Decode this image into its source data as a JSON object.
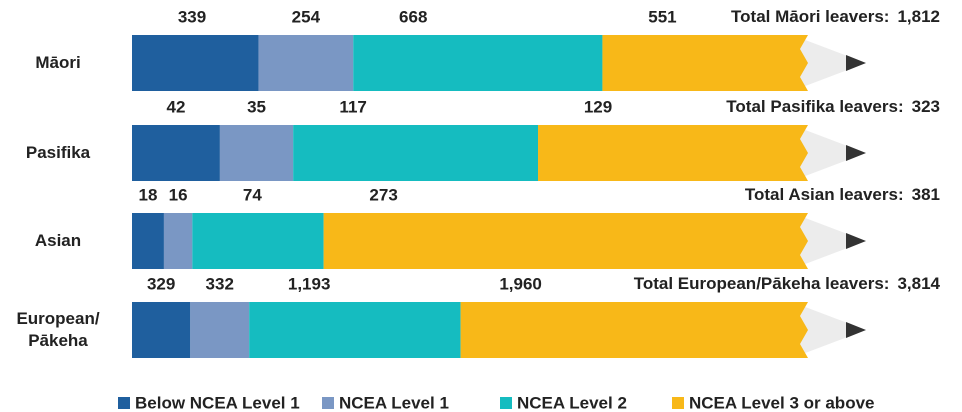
{
  "chart_data": {
    "type": "bar",
    "stacking": "percent",
    "categories": [
      "Māori",
      "Pasifika",
      "Asian",
      "European/ Pākeha"
    ],
    "series": [
      {
        "name": "Below NCEA Level 1",
        "color": "#1f5f9e",
        "values": [
          339,
          42,
          18,
          329
        ]
      },
      {
        "name": "NCEA Level 1",
        "color": "#7a97c4",
        "values": [
          254,
          35,
          16,
          332
        ]
      },
      {
        "name": "NCEA Level 2",
        "color": "#15bcc0",
        "values": [
          668,
          117,
          74,
          1193
        ],
        "value_labels": [
          "668",
          "117",
          "74",
          "1,193"
        ]
      },
      {
        "name": "NCEA Level 3 or above",
        "color": "#f8b818",
        "values": [
          551,
          129,
          273,
          1960
        ],
        "value_labels": [
          "551",
          "129",
          "273",
          "1,960"
        ]
      }
    ],
    "totals": {
      "labels": [
        "Total Māori leavers:",
        "Total Pasifika leavers:",
        "Total Asian leavers:",
        "Total European/Pākeha leavers:"
      ],
      "values": [
        1812,
        323,
        381,
        3814
      ],
      "value_labels": [
        "1,812",
        "323",
        "381",
        "3,814"
      ]
    }
  }
}
